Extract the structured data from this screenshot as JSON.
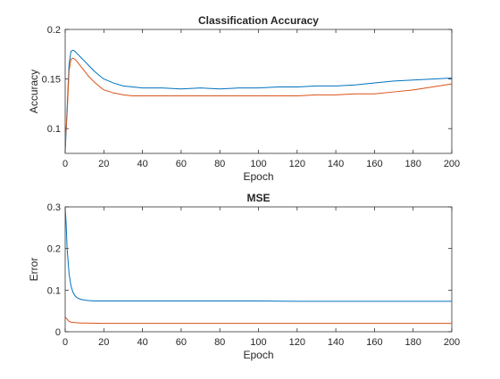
{
  "chart_data": [
    {
      "type": "line",
      "title": "Classification Accuracy",
      "xlabel": "Epoch",
      "ylabel": "Accuracy",
      "xlim": [
        0,
        200
      ],
      "ylim": [
        0.075,
        0.2
      ],
      "xticks": [
        "0",
        "20",
        "40",
        "60",
        "80",
        "100",
        "120",
        "140",
        "160",
        "180",
        "200"
      ],
      "yticks": [
        "0.1",
        "0.15",
        "0.2"
      ],
      "ytick_values": [
        0.1,
        0.15,
        0.2
      ],
      "grid": false,
      "series": [
        {
          "color": "#0072BD",
          "x": [
            0,
            1,
            2,
            3,
            4,
            5,
            6,
            8,
            10,
            12,
            15,
            18,
            20,
            25,
            30,
            35,
            40,
            50,
            60,
            70,
            80,
            90,
            100,
            110,
            120,
            130,
            140,
            150,
            160,
            170,
            180,
            190,
            200
          ],
          "y": [
            0.075,
            0.12,
            0.165,
            0.178,
            0.179,
            0.178,
            0.176,
            0.172,
            0.168,
            0.164,
            0.158,
            0.153,
            0.15,
            0.146,
            0.143,
            0.142,
            0.141,
            0.141,
            0.14,
            0.141,
            0.14,
            0.141,
            0.141,
            0.142,
            0.142,
            0.143,
            0.143,
            0.144,
            0.146,
            0.148,
            0.149,
            0.15,
            0.151
          ]
        },
        {
          "color": "#D95319",
          "x": [
            0,
            1,
            2,
            3,
            4,
            5,
            6,
            8,
            10,
            12,
            15,
            18,
            20,
            25,
            30,
            35,
            40,
            50,
            60,
            70,
            80,
            90,
            100,
            110,
            120,
            130,
            140,
            150,
            160,
            170,
            180,
            190,
            200
          ],
          "y": [
            0.085,
            0.115,
            0.158,
            0.17,
            0.171,
            0.17,
            0.168,
            0.163,
            0.158,
            0.153,
            0.147,
            0.142,
            0.139,
            0.136,
            0.134,
            0.133,
            0.133,
            0.133,
            0.133,
            0.133,
            0.133,
            0.133,
            0.133,
            0.133,
            0.133,
            0.134,
            0.134,
            0.135,
            0.135,
            0.137,
            0.139,
            0.142,
            0.145
          ]
        }
      ]
    },
    {
      "type": "line",
      "title": "MSE",
      "xlabel": "Epoch",
      "ylabel": "Error",
      "xlim": [
        0,
        200
      ],
      "ylim": [
        0,
        0.3
      ],
      "xticks": [
        "0",
        "20",
        "40",
        "60",
        "80",
        "100",
        "120",
        "140",
        "160",
        "180",
        "200"
      ],
      "yticks": [
        "0",
        "0.1",
        "0.2",
        "0.3"
      ],
      "ytick_values": [
        0,
        0.1,
        0.2,
        0.3
      ],
      "grid": false,
      "series": [
        {
          "color": "#0072BD",
          "x": [
            0,
            0.5,
            1,
            2,
            3,
            4,
            5,
            6,
            8,
            10,
            12,
            15,
            20,
            30,
            40,
            60,
            80,
            100,
            120,
            140,
            160,
            180,
            200
          ],
          "y": [
            0.3,
            0.26,
            0.2,
            0.14,
            0.11,
            0.095,
            0.087,
            0.082,
            0.078,
            0.076,
            0.075,
            0.074,
            0.074,
            0.074,
            0.074,
            0.074,
            0.074,
            0.074,
            0.073,
            0.073,
            0.073,
            0.073,
            0.073
          ]
        },
        {
          "color": "#D95319",
          "x": [
            0,
            1,
            2,
            3,
            5,
            8,
            10,
            20,
            40,
            60,
            80,
            100,
            120,
            140,
            160,
            180,
            200
          ],
          "y": [
            0.036,
            0.03,
            0.025,
            0.023,
            0.022,
            0.021,
            0.021,
            0.02,
            0.02,
            0.02,
            0.02,
            0.02,
            0.02,
            0.02,
            0.02,
            0.02,
            0.02
          ]
        }
      ]
    }
  ]
}
